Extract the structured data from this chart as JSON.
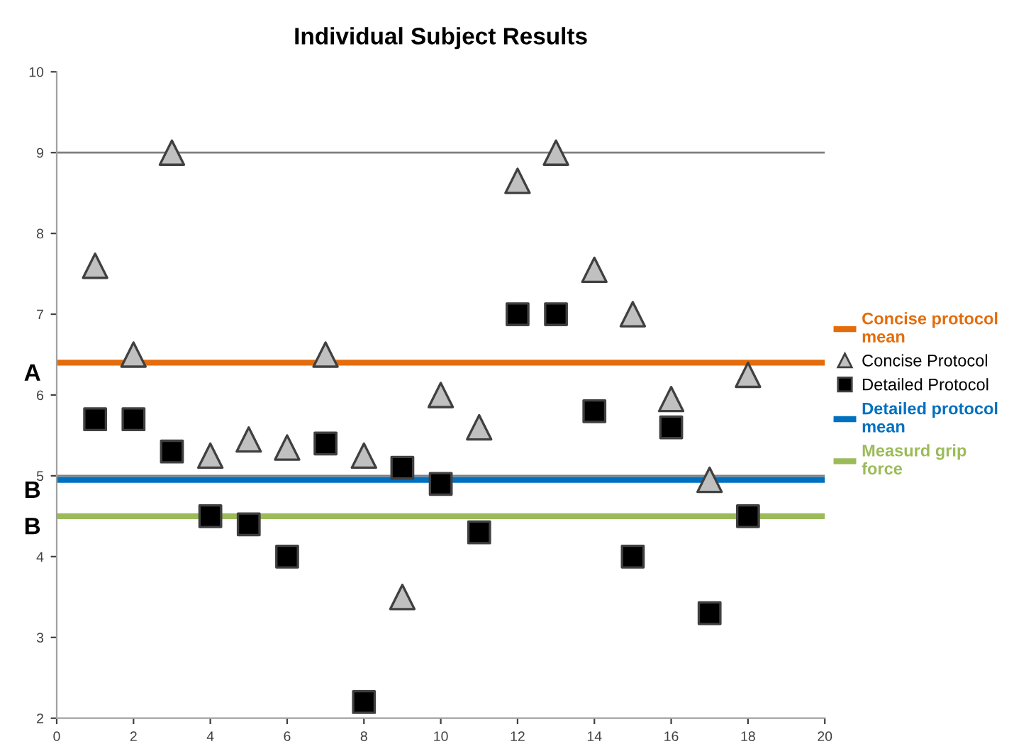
{
  "chart_data": {
    "type": "scatter",
    "title": "Individual Subject Results",
    "x": [
      1,
      2,
      3,
      4,
      5,
      6,
      7,
      8,
      9,
      10,
      11,
      12,
      13,
      14,
      15,
      16,
      17,
      18
    ],
    "series": [
      {
        "name": "Concise Protocol",
        "color": "#c0c0c0",
        "marker": "triangle",
        "values": [
          7.6,
          6.5,
          9.0,
          5.25,
          5.45,
          5.35,
          6.5,
          5.25,
          3.5,
          6.0,
          5.6,
          8.65,
          9.0,
          7.55,
          7.0,
          5.95,
          4.95,
          6.25
        ]
      },
      {
        "name": "Detailed Protocol",
        "color": "#000000",
        "marker": "square",
        "values": [
          5.7,
          5.7,
          5.3,
          4.5,
          4.4,
          4.0,
          5.4,
          2.2,
          5.1,
          4.9,
          4.3,
          7.0,
          7.0,
          5.8,
          4.0,
          5.6,
          3.3,
          4.5
        ]
      }
    ],
    "ref_lines": [
      {
        "axis": "y",
        "value": 9,
        "color": "#808080"
      },
      {
        "axis": "y",
        "value": 5,
        "color": "#808080"
      },
      {
        "axis": "y",
        "value": 6.4,
        "label": "Concise protocol mean",
        "color": "#e46c0a"
      },
      {
        "axis": "y",
        "value": 4.95,
        "label": "Detailed protocol mean",
        "color": "#0070c0"
      },
      {
        "axis": "y",
        "value": 4.5,
        "label": "Measurd grip force",
        "color": "#9bbb59"
      }
    ],
    "annotations": [
      "A",
      "B",
      "B"
    ],
    "xlim": [
      0,
      20
    ],
    "xticks": [
      0,
      2,
      4,
      6,
      8,
      10,
      12,
      14,
      16,
      18,
      20
    ],
    "ylim": [
      2,
      10
    ],
    "yticks": [
      2,
      3,
      4,
      5,
      6,
      7,
      8,
      9,
      10
    ],
    "legend": "right"
  }
}
